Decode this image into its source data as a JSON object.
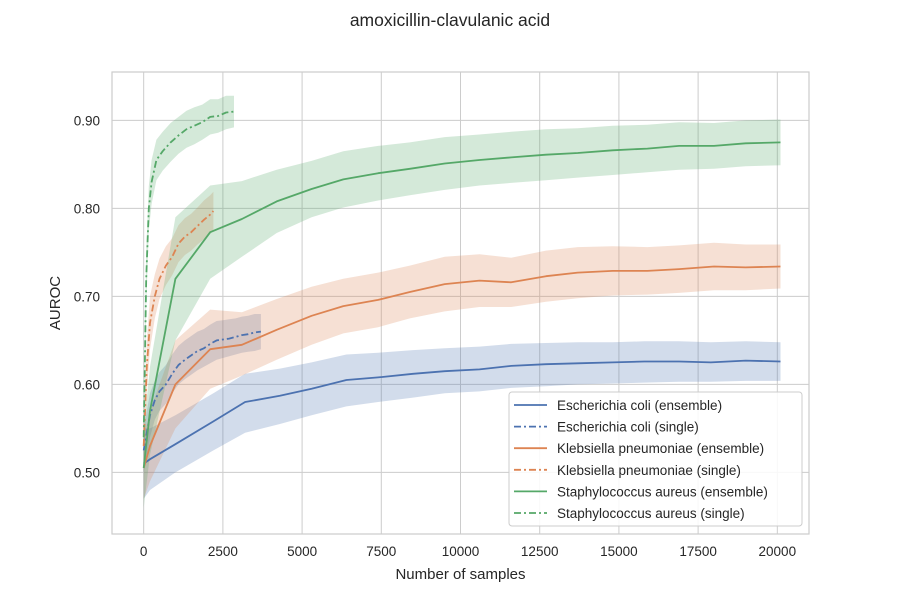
{
  "chart_data": {
    "type": "line",
    "title": "amoxicillin-clavulanic acid",
    "xlabel": "Number of samples",
    "ylabel": "AUROC",
    "xlim": [
      -1000,
      21000
    ],
    "ylim": [
      0.43,
      0.955
    ],
    "xticks": [
      0,
      2500,
      5000,
      7500,
      10000,
      12500,
      15000,
      17500,
      20000
    ],
    "xtick_labels": [
      "0",
      "2500",
      "5000",
      "7500",
      "10000",
      "12500",
      "15000",
      "17500",
      "20000"
    ],
    "yticks": [
      0.5,
      0.6,
      0.7,
      0.8,
      0.9
    ],
    "ytick_labels": [
      "0.50",
      "0.60",
      "0.70",
      "0.80",
      "0.90"
    ],
    "grid": true,
    "legend_position": "lower-right",
    "series": [
      {
        "name": "Escherichia coli (ensemble)",
        "color": "#4c72b0",
        "style": "solid",
        "x": [
          0,
          200,
          1000,
          2200,
          3200,
          4300,
          5300,
          6400,
          7400,
          8500,
          9500,
          10600,
          11600,
          12700,
          13700,
          14800,
          15800,
          16900,
          17900,
          19000,
          20100
        ],
        "y": [
          0.51,
          0.515,
          0.532,
          0.558,
          0.58,
          0.587,
          0.595,
          0.605,
          0.608,
          0.612,
          0.615,
          0.617,
          0.621,
          0.623,
          0.624,
          0.625,
          0.626,
          0.626,
          0.625,
          0.627,
          0.626
        ],
        "lower": [
          0.47,
          0.48,
          0.5,
          0.525,
          0.545,
          0.555,
          0.565,
          0.575,
          0.58,
          0.585,
          0.59,
          0.592,
          0.596,
          0.598,
          0.6,
          0.601,
          0.602,
          0.603,
          0.603,
          0.604,
          0.604
        ],
        "upper": [
          0.55,
          0.55,
          0.565,
          0.59,
          0.612,
          0.618,
          0.625,
          0.634,
          0.636,
          0.639,
          0.641,
          0.643,
          0.646,
          0.647,
          0.648,
          0.648,
          0.649,
          0.649,
          0.648,
          0.649,
          0.648
        ]
      },
      {
        "name": "Escherichia coli (single)",
        "color": "#4c72b0",
        "style": "dashdot",
        "x": [
          0,
          100,
          200,
          350,
          500,
          700,
          900,
          1100,
          1300,
          1500,
          1700,
          1900,
          2100,
          2300,
          2500,
          2700,
          2900,
          3100,
          3300,
          3500,
          3700
        ],
        "y": [
          0.525,
          0.545,
          0.565,
          0.582,
          0.592,
          0.6,
          0.612,
          0.622,
          0.628,
          0.633,
          0.638,
          0.641,
          0.646,
          0.65,
          0.651,
          0.652,
          0.654,
          0.656,
          0.657,
          0.659,
          0.66
        ],
        "lower": [
          0.5,
          0.52,
          0.54,
          0.56,
          0.57,
          0.578,
          0.59,
          0.6,
          0.606,
          0.611,
          0.616,
          0.62,
          0.624,
          0.628,
          0.63,
          0.632,
          0.634,
          0.636,
          0.637,
          0.638,
          0.64
        ],
        "upper": [
          0.55,
          0.57,
          0.59,
          0.604,
          0.614,
          0.622,
          0.634,
          0.644,
          0.65,
          0.655,
          0.66,
          0.663,
          0.668,
          0.672,
          0.673,
          0.674,
          0.675,
          0.677,
          0.678,
          0.68,
          0.68
        ]
      },
      {
        "name": "Klebsiella pneumoniae (ensemble)",
        "color": "#dd8452",
        "style": "solid",
        "x": [
          0,
          200,
          1000,
          2100,
          3100,
          4200,
          5300,
          6300,
          7400,
          8400,
          9500,
          10600,
          11600,
          12700,
          13700,
          14800,
          15900,
          16900,
          18000,
          19000,
          20100
        ],
        "y": [
          0.505,
          0.53,
          0.6,
          0.64,
          0.645,
          0.662,
          0.678,
          0.689,
          0.696,
          0.705,
          0.714,
          0.718,
          0.716,
          0.723,
          0.727,
          0.729,
          0.729,
          0.731,
          0.734,
          0.733,
          0.734
        ],
        "lower": [
          0.47,
          0.49,
          0.55,
          0.595,
          0.61,
          0.628,
          0.645,
          0.658,
          0.665,
          0.675,
          0.683,
          0.688,
          0.688,
          0.694,
          0.698,
          0.701,
          0.702,
          0.704,
          0.707,
          0.707,
          0.709
        ],
        "upper": [
          0.54,
          0.57,
          0.65,
          0.685,
          0.682,
          0.697,
          0.711,
          0.72,
          0.727,
          0.735,
          0.745,
          0.748,
          0.744,
          0.752,
          0.756,
          0.757,
          0.756,
          0.758,
          0.761,
          0.759,
          0.759
        ]
      },
      {
        "name": "Klebsiella pneumoniae (single)",
        "color": "#dd8452",
        "style": "dashdot",
        "x": [
          0,
          100,
          200,
          350,
          500,
          700,
          900,
          1100,
          1300,
          1500,
          1700,
          1900,
          2100,
          2200
        ],
        "y": [
          0.53,
          0.62,
          0.67,
          0.7,
          0.72,
          0.735,
          0.745,
          0.76,
          0.768,
          0.773,
          0.78,
          0.787,
          0.793,
          0.797
        ],
        "lower": [
          0.5,
          0.59,
          0.64,
          0.675,
          0.697,
          0.713,
          0.724,
          0.739,
          0.747,
          0.752,
          0.759,
          0.765,
          0.771,
          0.775
        ],
        "upper": [
          0.56,
          0.65,
          0.7,
          0.725,
          0.743,
          0.757,
          0.766,
          0.781,
          0.789,
          0.794,
          0.801,
          0.809,
          0.815,
          0.819
        ]
      },
      {
        "name": "Staphylococcus aureus (ensemble)",
        "color": "#55a868",
        "style": "solid",
        "x": [
          0,
          200,
          1000,
          2100,
          3100,
          4200,
          5300,
          6300,
          7400,
          8400,
          9500,
          10600,
          11600,
          12700,
          13700,
          14800,
          15900,
          16900,
          18000,
          19000,
          20100
        ],
        "y": [
          0.505,
          0.57,
          0.72,
          0.773,
          0.788,
          0.808,
          0.822,
          0.833,
          0.84,
          0.845,
          0.851,
          0.855,
          0.858,
          0.861,
          0.863,
          0.866,
          0.868,
          0.871,
          0.871,
          0.874,
          0.875
        ],
        "lower": [
          0.46,
          0.52,
          0.65,
          0.72,
          0.745,
          0.772,
          0.79,
          0.801,
          0.809,
          0.815,
          0.821,
          0.826,
          0.829,
          0.832,
          0.835,
          0.838,
          0.841,
          0.844,
          0.845,
          0.848,
          0.849
        ],
        "upper": [
          0.55,
          0.62,
          0.79,
          0.826,
          0.831,
          0.844,
          0.854,
          0.865,
          0.871,
          0.875,
          0.881,
          0.884,
          0.887,
          0.89,
          0.891,
          0.894,
          0.895,
          0.898,
          0.897,
          0.9,
          0.901
        ]
      },
      {
        "name": "Staphylococcus aureus (single)",
        "color": "#55a868",
        "style": "dashdot",
        "x": [
          0,
          80,
          160,
          250,
          400,
          600,
          850,
          1100,
          1350,
          1600,
          1850,
          2100,
          2350,
          2600,
          2850
        ],
        "y": [
          0.54,
          0.72,
          0.8,
          0.83,
          0.855,
          0.865,
          0.875,
          0.883,
          0.89,
          0.894,
          0.898,
          0.904,
          0.905,
          0.909,
          0.91
        ],
        "lower": [
          0.51,
          0.69,
          0.775,
          0.805,
          0.832,
          0.843,
          0.853,
          0.862,
          0.869,
          0.873,
          0.878,
          0.884,
          0.886,
          0.89,
          0.892
        ],
        "upper": [
          0.57,
          0.75,
          0.825,
          0.855,
          0.878,
          0.887,
          0.897,
          0.904,
          0.911,
          0.915,
          0.918,
          0.924,
          0.924,
          0.928,
          0.928
        ]
      }
    ]
  }
}
